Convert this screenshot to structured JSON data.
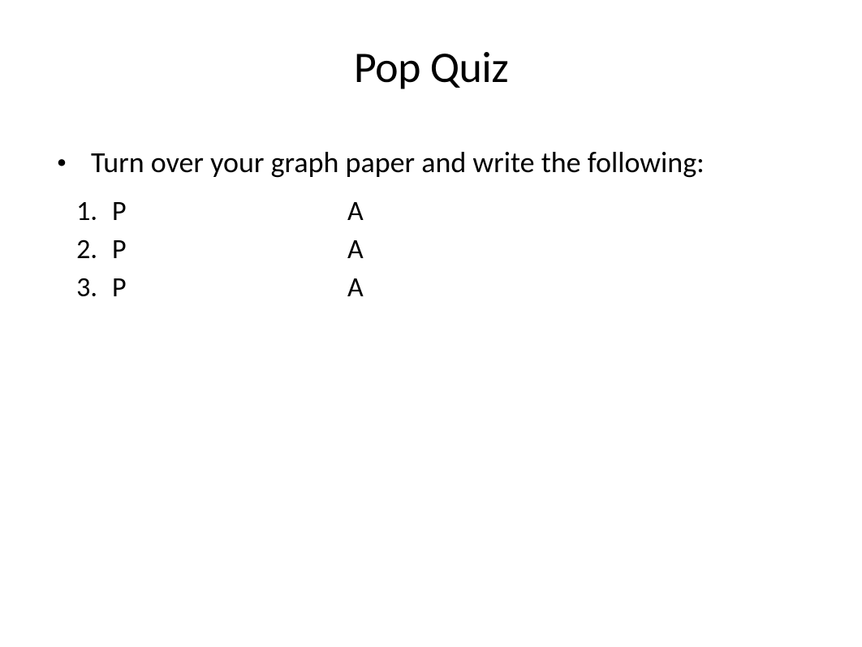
{
  "slide": {
    "title": "Pop Quiz",
    "bullet": {
      "text": "Turn over your graph paper and write the following:"
    },
    "list": [
      {
        "num": "1.",
        "col1": "P",
        "col2": "A"
      },
      {
        "num": "2.",
        "col1": "P",
        "col2": "A"
      },
      {
        "num": "3.",
        "col1": "P",
        "col2": "A"
      }
    ],
    "styling": {
      "background_color": "#ffffff",
      "text_color": "#000000",
      "title_fontsize": 54,
      "body_fontsize": 36,
      "list_fontsize": 34,
      "font_family": "Calibri"
    }
  }
}
